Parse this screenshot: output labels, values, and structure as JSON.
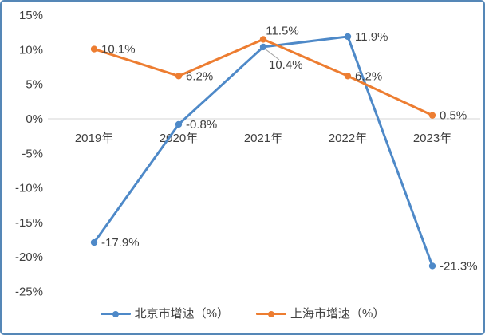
{
  "chart_data": {
    "type": "line",
    "categories": [
      "2019年",
      "2020年",
      "2021年",
      "2022年",
      "2023年"
    ],
    "series": [
      {
        "name": "北京市增速（%）",
        "color": "#4E89C8",
        "values": [
          -17.9,
          -0.8,
          10.4,
          11.9,
          -21.3
        ],
        "data_labels": [
          "-17.9%",
          "-0.8%",
          "10.4%",
          "11.9%",
          "-21.3%"
        ],
        "label_placement": [
          "right",
          "right",
          "below-leader",
          "right",
          "right"
        ]
      },
      {
        "name": "上海市增速（%）",
        "color": "#ED7D31",
        "values": [
          10.1,
          6.2,
          11.5,
          6.2,
          0.5
        ],
        "data_labels": [
          "10.1%",
          "6.2%",
          "11.5%",
          "6.2%",
          "0.5%"
        ],
        "label_placement": [
          "right",
          "right",
          "above",
          "right",
          "right"
        ]
      }
    ],
    "ylim": [
      -25,
      15
    ],
    "ytick_step": 5,
    "ytick_labels": [
      "15%",
      "10%",
      "5%",
      "0%",
      "-5%",
      "-10%",
      "-15%",
      "-20%",
      "-25%"
    ],
    "grid": "zero-line-only",
    "legend_position": "bottom",
    "xlabel": "",
    "ylabel": ""
  },
  "colors": {
    "series_beijing": "#4E89C8",
    "series_shanghai": "#ED7D31",
    "text": "#404040",
    "zero_line": "#D6D6D6",
    "leader_line": "#A6A6A6",
    "frame_border": "#5587B7",
    "background": "#FFFFFF"
  }
}
